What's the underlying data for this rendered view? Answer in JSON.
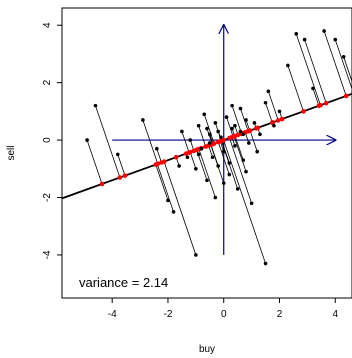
{
  "chart_data": {
    "type": "scatter",
    "title": "",
    "xlabel": "buy",
    "ylabel": "sell",
    "xlim": [
      -5.8,
      4.6
    ],
    "ylim": [
      -5.5,
      4.6
    ],
    "x_ticks": [
      "-4",
      "-2",
      "0",
      "2",
      "4"
    ],
    "y_ticks": [
      "-4",
      "-2",
      "0",
      "2",
      "4"
    ],
    "grid": false,
    "annotation": "variance = 2.14",
    "colors": {
      "points": "#000000",
      "projections": "#ff0000",
      "fit_line": "#000000",
      "arrows": "#00008b"
    },
    "fit_line": {
      "slope": 0.35,
      "intercept": 0.0
    },
    "arrows": {
      "horizontal": {
        "from": [
          -4.0,
          0.0
        ],
        "to": [
          4.0,
          0.0
        ]
      },
      "vertical": {
        "from": [
          0.0,
          -4.0
        ],
        "to": [
          0.0,
          4.0
        ]
      }
    },
    "points": [
      [
        -4.9,
        0.0
      ],
      [
        -4.6,
        1.2
      ],
      [
        -3.8,
        -0.5
      ],
      [
        -2.9,
        0.7
      ],
      [
        -2.4,
        -0.3
      ],
      [
        -2.0,
        -2.1
      ],
      [
        -1.8,
        -2.5
      ],
      [
        -1.6,
        -0.9
      ],
      [
        -1.5,
        0.3
      ],
      [
        -1.3,
        -0.6
      ],
      [
        -1.2,
        0.0
      ],
      [
        -1.0,
        -1.0
      ],
      [
        -0.9,
        0.5
      ],
      [
        -0.8,
        -0.3
      ],
      [
        -0.7,
        0.9
      ],
      [
        -0.6,
        -1.4
      ],
      [
        -0.5,
        0.2
      ],
      [
        -0.4,
        -0.6
      ],
      [
        -0.3,
        0.6
      ],
      [
        -0.2,
        -0.9
      ],
      [
        -0.1,
        0.1
      ],
      [
        0.0,
        -0.4
      ],
      [
        0.1,
        0.8
      ],
      [
        0.2,
        -1.2
      ],
      [
        0.3,
        0.4
      ],
      [
        0.4,
        -0.2
      ],
      [
        0.5,
        -1.7
      ],
      [
        0.6,
        0.3
      ],
      [
        0.7,
        -0.7
      ],
      [
        0.8,
        0.7
      ],
      [
        0.9,
        -0.1
      ],
      [
        1.0,
        -2.2
      ],
      [
        1.1,
        0.6
      ],
      [
        1.2,
        -0.4
      ],
      [
        1.5,
        1.3
      ],
      [
        1.6,
        1.7
      ],
      [
        1.8,
        0.5
      ],
      [
        2.0,
        1.0
      ],
      [
        2.3,
        2.6
      ],
      [
        2.6,
        3.7
      ],
      [
        2.9,
        3.5
      ],
      [
        3.2,
        1.8
      ],
      [
        3.6,
        3.8
      ],
      [
        4.0,
        3.5
      ],
      [
        4.3,
        2.9
      ],
      [
        -1.0,
        -4.0
      ],
      [
        1.5,
        -4.3
      ],
      [
        0.3,
        1.2
      ],
      [
        -0.3,
        -2.0
      ],
      [
        0.6,
        1.1
      ],
      [
        -0.6,
        0.4
      ],
      [
        0.2,
        -0.8
      ],
      [
        0.8,
        -1.1
      ],
      [
        -0.9,
        -0.5
      ],
      [
        1.3,
        0.2
      ],
      [
        -0.2,
        0.3
      ],
      [
        0.4,
        0.5
      ],
      [
        0.0,
        -1.5
      ],
      [
        0.7,
        0.2
      ],
      [
        -0.5,
        -0.1
      ]
    ]
  }
}
